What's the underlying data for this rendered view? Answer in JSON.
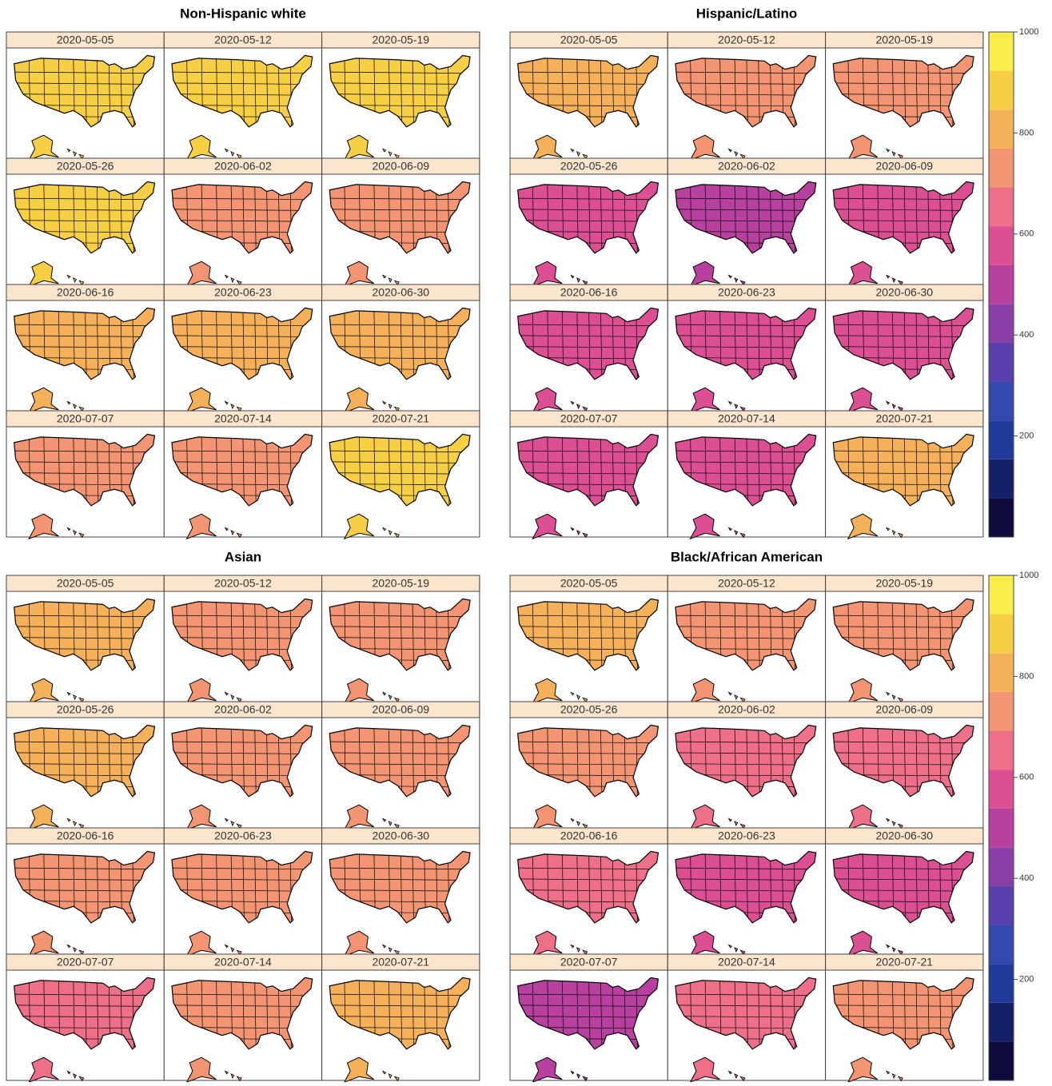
{
  "chart_data": [
    {
      "type": "choropleth",
      "title": "Non-Hispanic white",
      "categories": [
        "2020-05-05",
        "2020-05-12",
        "2020-05-19",
        "2020-05-26",
        "2020-06-02",
        "2020-06-09",
        "2020-06-16",
        "2020-06-23",
        "2020-06-30",
        "2020-07-07",
        "2020-07-14",
        "2020-07-21"
      ],
      "values": [
        900,
        920,
        900,
        880,
        760,
        760,
        780,
        780,
        780,
        750,
        760,
        900
      ],
      "colorbar": false
    },
    {
      "type": "choropleth",
      "title": "Hispanic/Latino",
      "categories": [
        "2020-05-05",
        "2020-05-12",
        "2020-05-19",
        "2020-05-26",
        "2020-06-02",
        "2020-06-09",
        "2020-06-16",
        "2020-06-23",
        "2020-06-30",
        "2020-07-07",
        "2020-07-14",
        "2020-07-21"
      ],
      "values": [
        780,
        720,
        720,
        600,
        520,
        580,
        560,
        600,
        600,
        540,
        560,
        820
      ],
      "colorbar": true,
      "clim": [
        0,
        1000
      ],
      "cticks": [
        200,
        400,
        600,
        800,
        1000
      ]
    },
    {
      "type": "choropleth",
      "title": "Asian",
      "categories": [
        "2020-05-05",
        "2020-05-12",
        "2020-05-19",
        "2020-05-26",
        "2020-06-02",
        "2020-06-09",
        "2020-06-16",
        "2020-06-23",
        "2020-06-30",
        "2020-07-07",
        "2020-07-14",
        "2020-07-21"
      ],
      "values": [
        820,
        760,
        760,
        800,
        700,
        720,
        740,
        740,
        760,
        680,
        700,
        780
      ],
      "colorbar": false
    },
    {
      "type": "choropleth",
      "title": "Black/African American",
      "categories": [
        "2020-05-05",
        "2020-05-12",
        "2020-05-19",
        "2020-05-26",
        "2020-06-02",
        "2020-06-09",
        "2020-06-16",
        "2020-06-23",
        "2020-06-30",
        "2020-07-07",
        "2020-07-14",
        "2020-07-21"
      ],
      "values": [
        780,
        760,
        740,
        700,
        620,
        640,
        620,
        600,
        600,
        520,
        640,
        720
      ],
      "colorbar": true,
      "clim": [
        0,
        1000
      ],
      "cticks": [
        200,
        400,
        600,
        800,
        1000
      ]
    }
  ],
  "colormap": [
    "#0d0b3a",
    "#152068",
    "#1f3a9a",
    "#3448b0",
    "#5a3fae",
    "#8840a8",
    "#b8409e",
    "#dc4f92",
    "#ee6f88",
    "#f39472",
    "#f5b05a",
    "#f7cf45",
    "#f8ee4a"
  ],
  "scale_lim": [
    0,
    1000
  ]
}
